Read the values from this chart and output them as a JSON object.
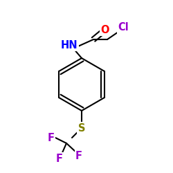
{
  "background": "#ffffff",
  "atoms": {
    "Cl": {
      "color": "#9900cc",
      "fontsize": 10.5
    },
    "O": {
      "color": "#ff0000",
      "fontsize": 10.5
    },
    "HN": {
      "color": "#0000ff",
      "fontsize": 10.5
    },
    "S": {
      "color": "#808000",
      "fontsize": 10.5
    },
    "F": {
      "color": "#9900cc",
      "fontsize": 10.5
    }
  },
  "bond_color": "#000000",
  "bond_lw": 1.5
}
